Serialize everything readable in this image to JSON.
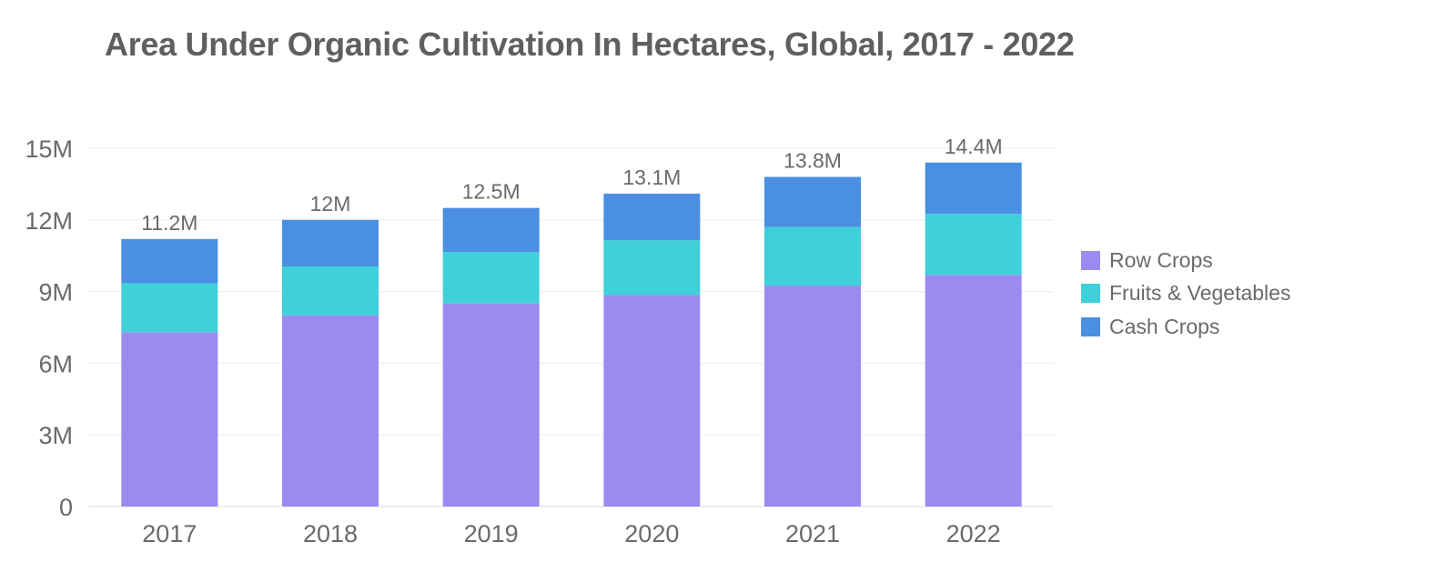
{
  "chart_data": {
    "type": "bar",
    "stacked": true,
    "title": "Area Under Organic Cultivation In Hectares, Global, 2017 - 2022",
    "xlabel": "",
    "ylabel": "",
    "categories": [
      "2017",
      "2018",
      "2019",
      "2020",
      "2021",
      "2022"
    ],
    "ylim": [
      0,
      15000000
    ],
    "y_ticks": [
      0,
      3000000,
      6000000,
      9000000,
      12000000,
      15000000
    ],
    "y_tick_labels": [
      "0",
      "3M",
      "6M",
      "9M",
      "12M",
      "15M"
    ],
    "series": [
      {
        "name": "Row Crops",
        "color": "#998bf0",
        "values": [
          7300000,
          8000000,
          8500000,
          8850000,
          9250000,
          9700000
        ]
      },
      {
        "name": "Fruits & Vegetables",
        "color": "#3fd0d9",
        "values": [
          2050000,
          2050000,
          2150000,
          2300000,
          2450000,
          2550000
        ]
      },
      {
        "name": "Cash Crops",
        "color": "#4a8fe2",
        "values": [
          1850000,
          1950000,
          1850000,
          1950000,
          2100000,
          2150000
        ]
      }
    ],
    "totals": [
      11200000,
      12000000,
      12500000,
      13100000,
      13800000,
      14400000
    ],
    "total_labels": [
      "11.2M",
      "12M",
      "12.5M",
      "13.1M",
      "13.8M",
      "14.4M"
    ],
    "legend": {
      "position": "right"
    },
    "grid": true
  }
}
